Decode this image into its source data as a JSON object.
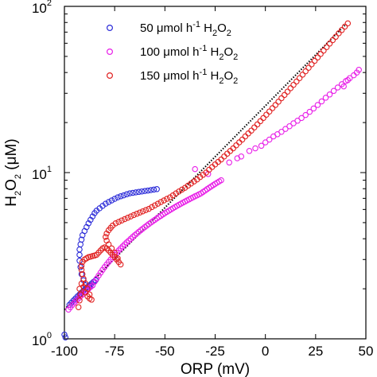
{
  "chart_data": {
    "type": "scatter",
    "title": "",
    "xlabel": "ORP (mV)",
    "ylabel": "H2O2 (μM)",
    "xlim": [
      -100,
      50
    ],
    "ylim": [
      1,
      100
    ],
    "yscale": "log",
    "grid": false,
    "legend_position": "top-left",
    "x_ticks": [
      "-100",
      "-75",
      "-50",
      "-25",
      "0",
      "25",
      "50"
    ],
    "x_tick_values": [
      -100,
      -75,
      -50,
      -25,
      0,
      25,
      50
    ],
    "y_tick_values": [
      1,
      10,
      100
    ],
    "y_tick_labels": [
      {
        "base": "10",
        "exp": "0"
      },
      {
        "base": "10",
        "exp": "1"
      },
      {
        "base": "10",
        "exp": "2"
      }
    ],
    "ylabel_parts": {
      "main": "H",
      "sub1": "2",
      "mid": "O",
      "sub2": "2",
      "unit": " (μM)"
    },
    "legend": [
      {
        "prefix": "50 μmol h",
        "sup": "-1",
        "mid": " H",
        "sub1": "2",
        "o": "O",
        "sub2": "2"
      },
      {
        "prefix": "100 μmol h",
        "sup": "-1",
        "mid": " H",
        "sub1": "2",
        "o": "O",
        "sub2": "2"
      },
      {
        "prefix": "150 μmol h",
        "sup": "-1",
        "mid": " H",
        "sub1": "2",
        "o": "O",
        "sub2": "2"
      }
    ],
    "series": [
      {
        "name": "50 μmol h-1 H2O2",
        "color": "#2b2bd8",
        "points": [
          [
            -100,
            1.06
          ],
          [
            -99.5,
            1.02
          ],
          [
            -97.5,
            1.6
          ],
          [
            -96.5,
            1.65
          ],
          [
            -95.5,
            1.7
          ],
          [
            -94.5,
            1.75
          ],
          [
            -93.5,
            1.8
          ],
          [
            -92.5,
            1.85
          ],
          [
            -91.5,
            1.9
          ],
          [
            -90.5,
            1.95
          ],
          [
            -89.5,
            2.0
          ],
          [
            -88.5,
            2.05
          ],
          [
            -87.5,
            2.1
          ],
          [
            -86.5,
            2.15
          ],
          [
            -85.5,
            2.2
          ],
          [
            -84.5,
            2.25
          ],
          [
            -86,
            2.1
          ],
          [
            -87.5,
            2.05
          ],
          [
            -89.5,
            2.1
          ],
          [
            -90.5,
            2.25
          ],
          [
            -91.5,
            2.45
          ],
          [
            -92,
            2.7
          ],
          [
            -92.5,
            2.95
          ],
          [
            -92.5,
            3.2
          ],
          [
            -92.5,
            3.45
          ],
          [
            -92,
            3.7
          ],
          [
            -91.5,
            3.95
          ],
          [
            -91,
            4.2
          ],
          [
            -90,
            4.45
          ],
          [
            -89,
            4.7
          ],
          [
            -88,
            4.95
          ],
          [
            -87,
            5.2
          ],
          [
            -86,
            5.45
          ],
          [
            -85,
            5.7
          ],
          [
            -84,
            5.9
          ],
          [
            -82.5,
            6.1
          ],
          [
            -81,
            6.3
          ],
          [
            -79.5,
            6.5
          ],
          [
            -78,
            6.65
          ],
          [
            -76.5,
            6.8
          ],
          [
            -75,
            6.95
          ],
          [
            -73.5,
            7.1
          ],
          [
            -72,
            7.2
          ],
          [
            -70.5,
            7.3
          ],
          [
            -69,
            7.4
          ],
          [
            -67.5,
            7.5
          ],
          [
            -66,
            7.55
          ],
          [
            -64.5,
            7.6
          ],
          [
            -63,
            7.65
          ],
          [
            -61.5,
            7.7
          ],
          [
            -60,
            7.75
          ],
          [
            -58.5,
            7.8
          ],
          [
            -57,
            7.85
          ],
          [
            -55.5,
            7.9
          ],
          [
            -54,
            7.95
          ]
        ]
      },
      {
        "name": "100 μmol h-1 H2O2",
        "color": "#e81ee8",
        "points": [
          [
            -98,
            1.5
          ],
          [
            -97,
            1.55
          ],
          [
            -96,
            1.6
          ],
          [
            -95,
            1.65
          ],
          [
            -94,
            1.7
          ],
          [
            -93,
            1.75
          ],
          [
            -92,
            1.8
          ],
          [
            -91,
            1.85
          ],
          [
            -90,
            1.9
          ],
          [
            -89,
            1.95
          ],
          [
            -88,
            2.0
          ],
          [
            -87,
            2.05
          ],
          [
            -86,
            2.1
          ],
          [
            -85,
            2.2
          ],
          [
            -84,
            2.3
          ],
          [
            -83,
            2.4
          ],
          [
            -82,
            2.5
          ],
          [
            -81,
            2.6
          ],
          [
            -80,
            2.7
          ],
          [
            -79,
            2.8
          ],
          [
            -78,
            2.9
          ],
          [
            -77,
            3.0
          ],
          [
            -76,
            3.1
          ],
          [
            -75,
            3.2
          ],
          [
            -74,
            3.3
          ],
          [
            -73,
            3.4
          ],
          [
            -72,
            3.5
          ],
          [
            -71,
            3.6
          ],
          [
            -70,
            3.7
          ],
          [
            -69,
            3.8
          ],
          [
            -68,
            3.9
          ],
          [
            -67,
            4.0
          ],
          [
            -66,
            4.1
          ],
          [
            -65,
            4.2
          ],
          [
            -64,
            4.3
          ],
          [
            -63,
            4.4
          ],
          [
            -62,
            4.5
          ],
          [
            -61,
            4.6
          ],
          [
            -60,
            4.7
          ],
          [
            -59,
            4.8
          ],
          [
            -58,
            4.9
          ],
          [
            -57,
            5.0
          ],
          [
            -56,
            5.1
          ],
          [
            -55,
            5.2
          ],
          [
            -54,
            5.3
          ],
          [
            -53,
            5.4
          ],
          [
            -52,
            5.5
          ],
          [
            -51,
            5.6
          ],
          [
            -50,
            5.7
          ],
          [
            -49,
            5.8
          ],
          [
            -48,
            5.9
          ],
          [
            -47,
            6.0
          ],
          [
            -46,
            6.1
          ],
          [
            -45,
            6.2
          ],
          [
            -44,
            6.3
          ],
          [
            -43,
            6.4
          ],
          [
            -42,
            6.5
          ],
          [
            -41,
            6.6
          ],
          [
            -40,
            6.7
          ],
          [
            -39,
            6.8
          ],
          [
            -38,
            6.9
          ],
          [
            -37,
            7.0
          ],
          [
            -36,
            7.1
          ],
          [
            -35,
            7.2
          ],
          [
            -34,
            7.3
          ],
          [
            -33,
            7.4
          ],
          [
            -32,
            7.5
          ],
          [
            -31,
            7.65
          ],
          [
            -30,
            7.8
          ],
          [
            -29,
            7.95
          ],
          [
            -28,
            8.1
          ],
          [
            -27,
            8.25
          ],
          [
            -26,
            8.4
          ],
          [
            -25,
            8.55
          ],
          [
            -24,
            8.7
          ],
          [
            -23,
            8.85
          ],
          [
            -22,
            9.0
          ],
          [
            -28.5,
            9.8
          ],
          [
            -35,
            10.5
          ],
          [
            -18,
            11.5
          ],
          [
            -14,
            12.2
          ],
          [
            -12,
            12.5
          ],
          [
            -8,
            13.5
          ],
          [
            -5,
            14
          ],
          [
            -2,
            14.5
          ],
          [
            0,
            15.2
          ],
          [
            2,
            15.8
          ],
          [
            4,
            16.5
          ],
          [
            6,
            17
          ],
          [
            8,
            17.6
          ],
          [
            10,
            18.3
          ],
          [
            12,
            19
          ],
          [
            14,
            19.8
          ],
          [
            16,
            20.5
          ],
          [
            18,
            21.3
          ],
          [
            20,
            22.2
          ],
          [
            22,
            23.2
          ],
          [
            24,
            24.3
          ],
          [
            26,
            25.5
          ],
          [
            28,
            26.8
          ],
          [
            30,
            28.2
          ],
          [
            32,
            29.5
          ],
          [
            34,
            31
          ],
          [
            36,
            32.5
          ],
          [
            38,
            34
          ],
          [
            40,
            35.5
          ],
          [
            42,
            37
          ],
          [
            44,
            38.5
          ],
          [
            45.5,
            40
          ],
          [
            46.5,
            41.5
          ],
          [
            39,
            33
          ],
          [
            41,
            36
          ]
        ]
      },
      {
        "name": "150 μmol h-1 H2O2",
        "color": "#e02020",
        "points": [
          [
            -93,
            1.55
          ],
          [
            -92.5,
            1.7
          ],
          [
            -92,
            1.85
          ],
          [
            -92.5,
            2.0
          ],
          [
            -91.5,
            2.15
          ],
          [
            -90.5,
            2.05
          ],
          [
            -89.5,
            1.9
          ],
          [
            -88.5,
            1.8
          ],
          [
            -87.5,
            1.75
          ],
          [
            -86.5,
            1.72
          ],
          [
            -87.5,
            1.85
          ],
          [
            -88.5,
            2.0
          ],
          [
            -89.5,
            2.15
          ],
          [
            -90.5,
            2.3
          ],
          [
            -91,
            2.45
          ],
          [
            -91.5,
            2.6
          ],
          [
            -91.5,
            2.75
          ],
          [
            -91,
            2.9
          ],
          [
            -90,
            3.0
          ],
          [
            -89,
            3.05
          ],
          [
            -88,
            3.1
          ],
          [
            -87,
            3.12
          ],
          [
            -86,
            3.15
          ],
          [
            -85,
            3.17
          ],
          [
            -84,
            3.2
          ],
          [
            -83,
            3.3
          ],
          [
            -82,
            3.4
          ],
          [
            -81,
            3.5
          ],
          [
            -80,
            3.55
          ],
          [
            -79,
            3.5
          ],
          [
            -78,
            3.4
          ],
          [
            -77,
            3.3
          ],
          [
            -76,
            3.2
          ],
          [
            -75,
            3.1
          ],
          [
            -74,
            3.0
          ],
          [
            -73,
            2.9
          ],
          [
            -72,
            2.8
          ],
          [
            -73.5,
            3.05
          ],
          [
            -75,
            3.3
          ],
          [
            -76.5,
            3.5
          ],
          [
            -78,
            3.7
          ],
          [
            -79,
            3.9
          ],
          [
            -79.5,
            4.1
          ],
          [
            -79,
            4.3
          ],
          [
            -78,
            4.5
          ],
          [
            -77,
            4.65
          ],
          [
            -76,
            4.8
          ],
          [
            -74.5,
            4.95
          ],
          [
            -73,
            5.05
          ],
          [
            -71.5,
            5.15
          ],
          [
            -70,
            5.25
          ],
          [
            -68.5,
            5.35
          ],
          [
            -67,
            5.45
          ],
          [
            -65.5,
            5.55
          ],
          [
            -64,
            5.65
          ],
          [
            -62.5,
            5.75
          ],
          [
            -61,
            5.85
          ],
          [
            -59.5,
            5.95
          ],
          [
            -58,
            6.05
          ],
          [
            -56.5,
            6.2
          ],
          [
            -55,
            6.35
          ],
          [
            -53.5,
            6.5
          ],
          [
            -52,
            6.65
          ],
          [
            -50.5,
            6.8
          ],
          [
            -49,
            6.95
          ],
          [
            -47.5,
            7.1
          ],
          [
            -46,
            7.3
          ],
          [
            -44.5,
            7.5
          ],
          [
            -43,
            7.7
          ],
          [
            -41.5,
            7.9
          ],
          [
            -40,
            8.1
          ],
          [
            -38.5,
            8.35
          ],
          [
            -37,
            8.6
          ],
          [
            -35.5,
            8.85
          ],
          [
            -34,
            9.1
          ],
          [
            -32.5,
            9.4
          ],
          [
            -31,
            9.7
          ],
          [
            -29.5,
            10.0
          ],
          [
            -28,
            10.4
          ],
          [
            -26.5,
            10.8
          ],
          [
            -25,
            11.2
          ],
          [
            -23.5,
            11.6
          ],
          [
            -22,
            12.0
          ],
          [
            -20.5,
            12.5
          ],
          [
            -19,
            13.0
          ],
          [
            -17.5,
            13.5
          ],
          [
            -16,
            14.0
          ],
          [
            -14.5,
            14.6
          ],
          [
            -13,
            15.2
          ],
          [
            -11.5,
            15.8
          ],
          [
            -10,
            16.5
          ],
          [
            -8.5,
            17.2
          ],
          [
            -7,
            17.9
          ],
          [
            -5.5,
            18.7
          ],
          [
            -4,
            19.5
          ],
          [
            -2.5,
            20.4
          ],
          [
            -1,
            21.3
          ],
          [
            0.5,
            22.3
          ],
          [
            2,
            23.3
          ],
          [
            3.5,
            24.4
          ],
          [
            5,
            25.5
          ],
          [
            6.5,
            26.7
          ],
          [
            8,
            28
          ],
          [
            9.5,
            29.3
          ],
          [
            11,
            30.7
          ],
          [
            12.5,
            32.2
          ],
          [
            14,
            33.7
          ],
          [
            15.5,
            35.3
          ],
          [
            17,
            37
          ],
          [
            18.5,
            38.8
          ],
          [
            20,
            40.7
          ],
          [
            21.5,
            42.7
          ],
          [
            23,
            44.8
          ],
          [
            24.5,
            47
          ],
          [
            26,
            49.3
          ],
          [
            27.5,
            51.7
          ],
          [
            29,
            54.2
          ],
          [
            30.5,
            56.9
          ],
          [
            32,
            59.7
          ],
          [
            33.5,
            62.6
          ],
          [
            35,
            65.6
          ],
          [
            36.5,
            68.8
          ],
          [
            38,
            72
          ],
          [
            39.5,
            75.5
          ],
          [
            41,
            79
          ]
        ]
      }
    ],
    "fit_line": {
      "name": "fit",
      "color": "#000000",
      "style": "dotted",
      "x": [
        -100,
        40
      ],
      "y": [
        1.5,
        78
      ]
    }
  }
}
